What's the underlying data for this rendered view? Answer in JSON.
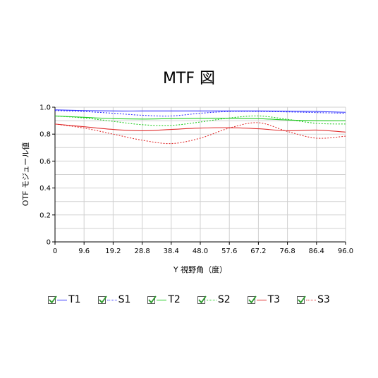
{
  "chart_data": {
    "type": "line",
    "title": "MTF 図",
    "xlabel": "Y 視野角（度）",
    "ylabel": "OTF モジュール値",
    "xlim": [
      0,
      96
    ],
    "ylim": [
      0,
      1.0
    ],
    "xticks": [
      "0",
      "9.6",
      "19.2",
      "28.8",
      "38.4",
      "48.0",
      "57.6",
      "67.2",
      "76.8",
      "86.4",
      "96.0"
    ],
    "yticks": [
      "0",
      "0.2",
      "0.4",
      "0.6",
      "0.8",
      "1.0"
    ],
    "grid": true,
    "legend_position": "bottom",
    "series": [
      {
        "name": "T1",
        "color": "#3333ff",
        "style": "solid",
        "x": [
          0,
          9.6,
          19.2,
          28.8,
          38.4,
          48,
          57.6,
          67.2,
          76.8,
          86.4,
          96
        ],
        "y": [
          0.98,
          0.975,
          0.972,
          0.972,
          0.972,
          0.972,
          0.972,
          0.972,
          0.971,
          0.968,
          0.962
        ]
      },
      {
        "name": "S1",
        "color": "#3333ff",
        "style": "dotted",
        "x": [
          0,
          9.6,
          19.2,
          28.8,
          38.4,
          48,
          57.6,
          67.2,
          76.8,
          86.4,
          96
        ],
        "y": [
          0.975,
          0.968,
          0.955,
          0.94,
          0.935,
          0.955,
          0.968,
          0.968,
          0.965,
          0.96,
          0.955
        ]
      },
      {
        "name": "T2",
        "color": "#22cc22",
        "style": "solid",
        "x": [
          0,
          9.6,
          19.2,
          28.8,
          38.4,
          48,
          57.6,
          67.2,
          76.8,
          86.4,
          96
        ],
        "y": [
          0.935,
          0.925,
          0.915,
          0.912,
          0.915,
          0.918,
          0.918,
          0.915,
          0.905,
          0.9,
          0.9
        ]
      },
      {
        "name": "S2",
        "color": "#22cc22",
        "style": "dotted",
        "x": [
          0,
          9.6,
          19.2,
          28.8,
          38.4,
          48,
          57.6,
          67.2,
          76.8,
          86.4,
          96
        ],
        "y": [
          0.935,
          0.92,
          0.895,
          0.87,
          0.865,
          0.89,
          0.92,
          0.935,
          0.91,
          0.88,
          0.875
        ]
      },
      {
        "name": "T3",
        "color": "#e03030",
        "style": "solid",
        "x": [
          0,
          9.6,
          19.2,
          28.8,
          38.4,
          48,
          57.6,
          67.2,
          76.8,
          86.4,
          96
        ],
        "y": [
          0.875,
          0.855,
          0.835,
          0.825,
          0.835,
          0.845,
          0.848,
          0.84,
          0.825,
          0.83,
          0.815
        ]
      },
      {
        "name": "S3",
        "color": "#e03030",
        "style": "dotted",
        "x": [
          0,
          9.6,
          19.2,
          28.8,
          38.4,
          48,
          57.6,
          67.2,
          76.8,
          86.4,
          96
        ],
        "y": [
          0.875,
          0.845,
          0.8,
          0.755,
          0.73,
          0.77,
          0.845,
          0.885,
          0.82,
          0.77,
          0.785
        ]
      }
    ]
  }
}
